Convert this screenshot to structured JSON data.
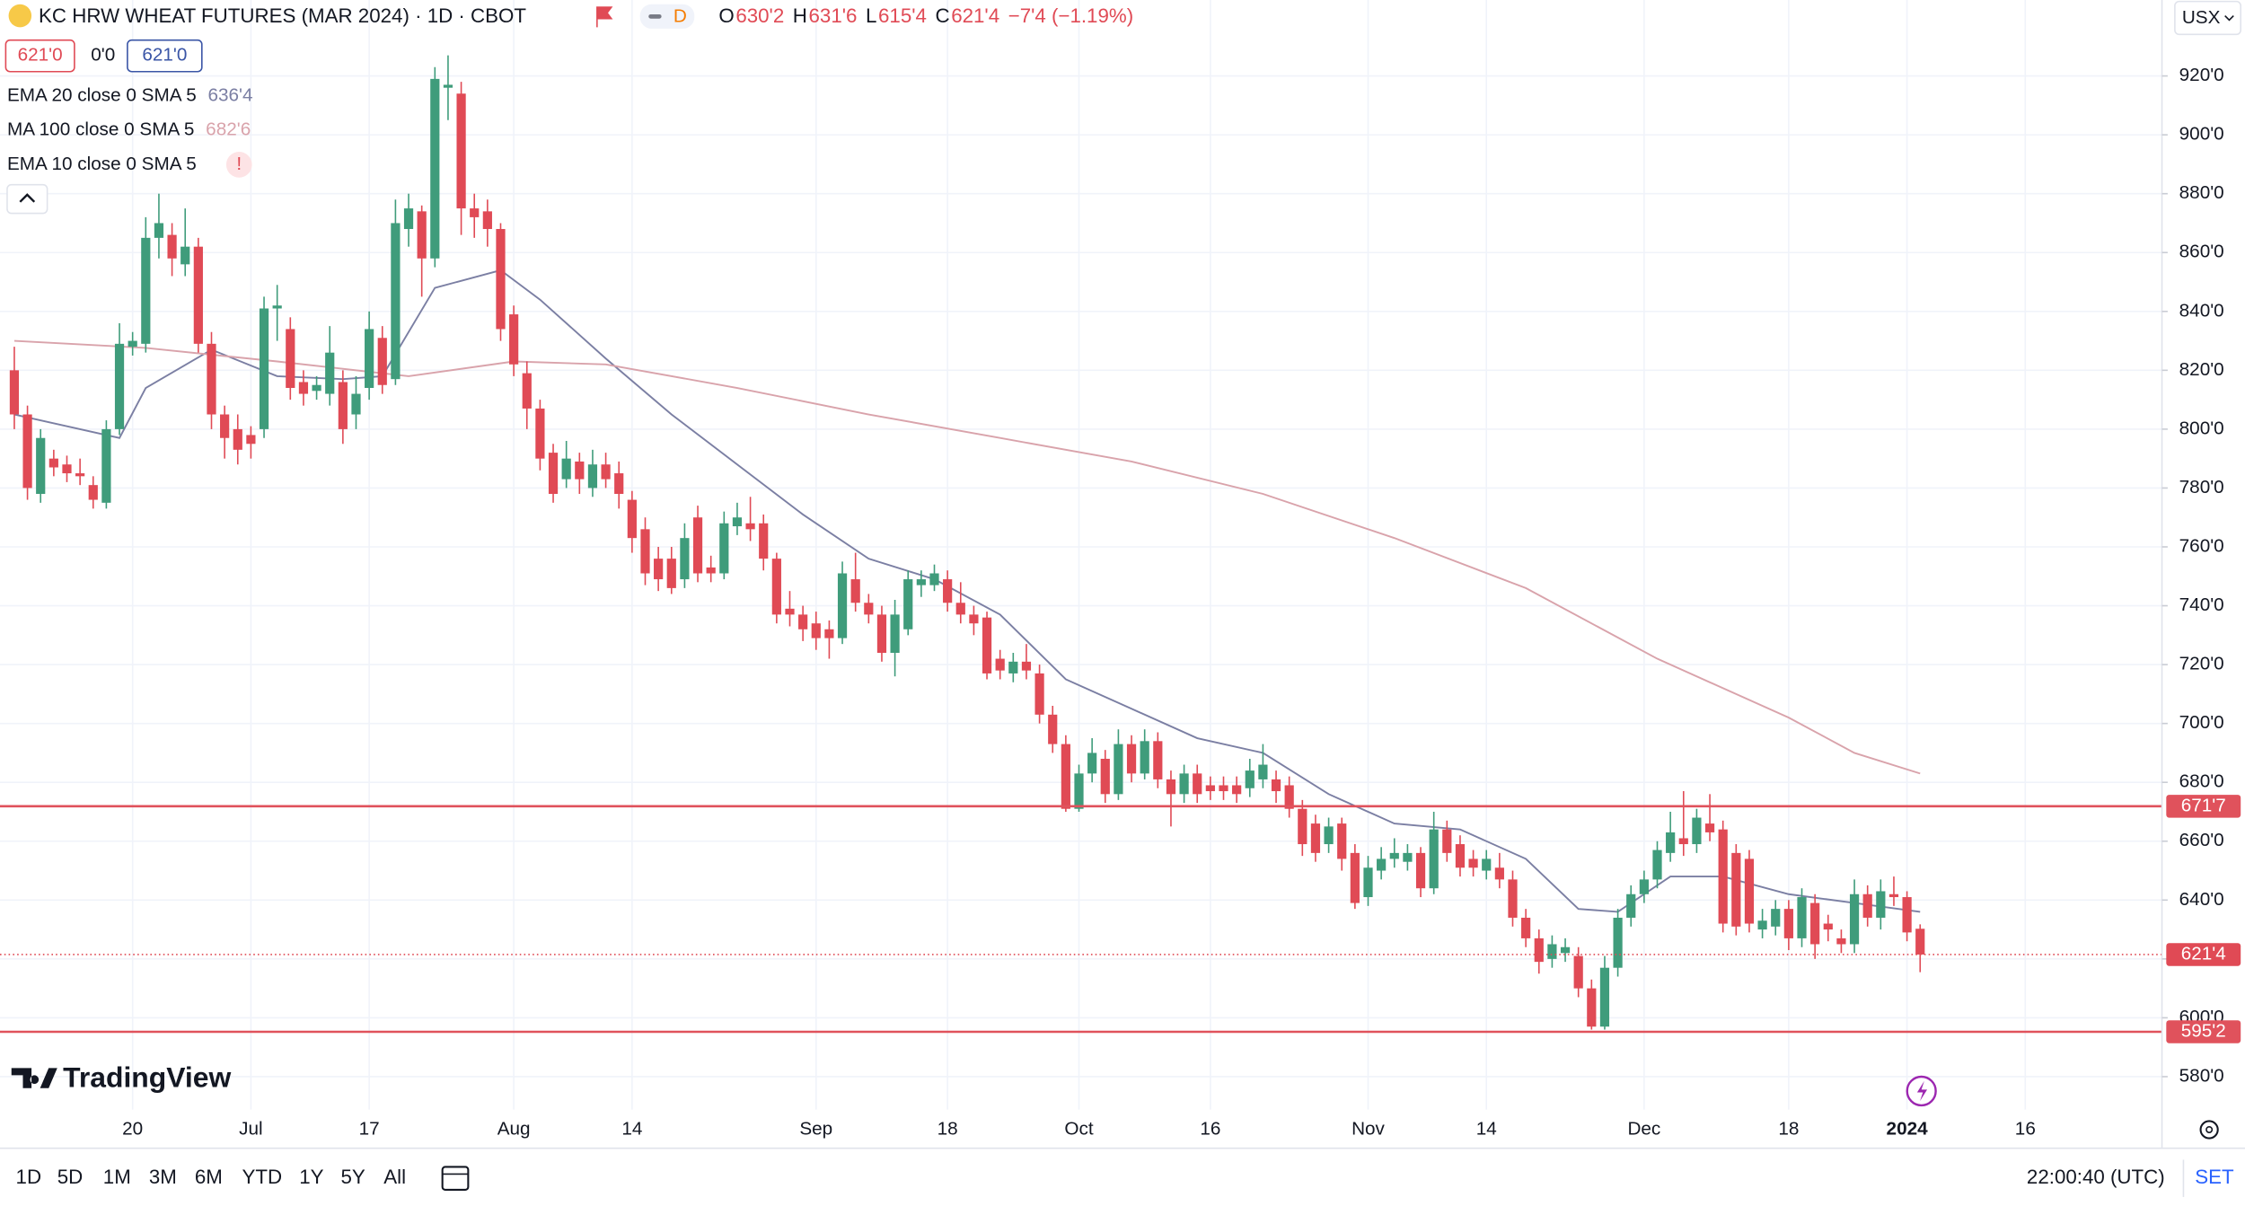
{
  "ui": {
    "symbol": "KC HRW WHEAT FUTURES (MAR 2024) · 1D · CBOT",
    "badge": "D",
    "legend": [
      {
        "key": "O",
        "value": "630'2"
      },
      {
        "key": "H",
        "value": "631'6"
      },
      {
        "key": "L",
        "value": "615'4"
      },
      {
        "key": "C",
        "value": "621'4"
      }
    ],
    "change": "−7'4 (−1.19%)",
    "sell": "621'0",
    "spread": "0'0",
    "buy": "621'0",
    "currency": "USX",
    "logo": "TradingView",
    "ranges": [
      "1D",
      "5D",
      "1M",
      "3M",
      "6M",
      "YTD",
      "1Y",
      "5Y",
      "All"
    ],
    "clock": "22:00:40 (UTC)",
    "settings": "SET"
  },
  "chart_data": {
    "type": "candlestick",
    "categories": [
      null,
      null,
      null,
      null,
      null,
      null,
      null,
      null,
      null,
      "20",
      null,
      null,
      null,
      null,
      null,
      null,
      null,
      null,
      "Jul",
      null,
      null,
      null,
      null,
      null,
      null,
      null,
      null,
      "17",
      null,
      null,
      null,
      null,
      null,
      null,
      null,
      null,
      null,
      null,
      "Aug",
      null,
      null,
      null,
      null,
      null,
      null,
      null,
      null,
      "14",
      null,
      null,
      null,
      null,
      null,
      null,
      null,
      null,
      null,
      null,
      null,
      null,
      null,
      "Sep",
      null,
      null,
      null,
      null,
      null,
      null,
      null,
      null,
      null,
      "18",
      null,
      null,
      null,
      null,
      null,
      null,
      null,
      null,
      null,
      "Oct",
      null,
      null,
      null,
      null,
      null,
      null,
      null,
      null,
      null,
      "16",
      null,
      null,
      null,
      null,
      null,
      null,
      null,
      null,
      null,
      null,
      null,
      "Nov",
      null,
      null,
      null,
      null,
      null,
      null,
      null,
      null,
      "14",
      null,
      null,
      null,
      null,
      null,
      null,
      null,
      null,
      null,
      null,
      null,
      "Dec",
      null,
      null,
      null,
      null,
      null,
      null,
      null,
      null,
      null,
      null,
      "18",
      null,
      null,
      null,
      null,
      null,
      null,
      null,
      null,
      "2024",
      null,
      null,
      null,
      null,
      null,
      null,
      null,
      null,
      "16"
    ],
    "open": [
      820,
      805,
      778,
      790,
      788,
      785,
      781,
      775,
      800,
      828,
      829,
      865,
      866,
      856,
      862,
      829,
      805,
      800,
      798,
      800,
      841,
      834,
      816,
      813,
      812,
      816,
      805,
      814,
      831,
      817,
      868,
      874,
      858,
      916,
      914,
      875,
      874,
      868,
      839,
      819,
      807,
      792,
      783,
      789,
      780,
      788,
      785,
      776,
      766,
      756,
      756,
      749,
      770,
      753,
      751,
      767,
      768,
      768,
      756,
      739,
      737,
      734,
      732,
      729,
      749,
      741,
      737,
      724,
      732,
      747,
      747,
      749,
      741,
      737,
      736,
      722,
      717,
      721,
      717,
      703,
      693,
      671,
      683,
      688,
      676,
      693,
      683,
      694,
      681,
      676,
      683,
      679,
      679,
      679,
      678,
      681,
      681,
      679,
      671,
      666,
      659,
      666,
      656,
      641,
      650,
      654,
      653,
      656,
      644,
      664,
      659,
      654,
      650,
      651,
      647,
      634,
      627,
      620,
      622,
      621,
      610,
      597,
      617,
      634,
      642,
      647,
      656,
      661,
      659,
      666,
      664,
      656,
      654,
      630,
      631,
      637,
      627,
      639,
      632,
      627,
      625,
      642,
      634,
      642,
      641,
      630.25,
      null,
      null,
      null,
      null,
      null,
      null,
      null,
      null
    ],
    "high": [
      828,
      808,
      800,
      793,
      791,
      790,
      784,
      803,
      836,
      833,
      872,
      880,
      870,
      875,
      865,
      833,
      808,
      805,
      801,
      845,
      849,
      838,
      820,
      818,
      835,
      820,
      818,
      840,
      835,
      878,
      880,
      876,
      923,
      927,
      918,
      880,
      878,
      870,
      842,
      823,
      810,
      795,
      796,
      792,
      793,
      792,
      789,
      779,
      770,
      760,
      760,
      768,
      774,
      757,
      772,
      775,
      777,
      771,
      758,
      745,
      740,
      738,
      735,
      755,
      758,
      744,
      740,
      742,
      752,
      752,
      754,
      752,
      748,
      740,
      738,
      725,
      724,
      727,
      720,
      706,
      696,
      686,
      695,
      691,
      698,
      696,
      698,
      697,
      684,
      686,
      686,
      682,
      682,
      682,
      688,
      693,
      684,
      682,
      674,
      669,
      668,
      668,
      659,
      655,
      658,
      661,
      659,
      658,
      670,
      667,
      662,
      657,
      657,
      656,
      650,
      637,
      630,
      628,
      627,
      624,
      613,
      621,
      637,
      645,
      650,
      660,
      670,
      677,
      671,
      676,
      667,
      659,
      657,
      637,
      640,
      640,
      644,
      642,
      635,
      630,
      647,
      645,
      647,
      648,
      643,
      631.75,
      null,
      null,
      null,
      null,
      null,
      null,
      null,
      null
    ],
    "low": [
      800,
      776,
      775,
      784,
      782,
      781,
      773,
      773,
      798,
      825,
      826,
      858,
      852,
      852,
      826,
      800,
      790,
      788,
      790,
      797,
      830,
      810,
      808,
      810,
      808,
      795,
      800,
      810,
      812,
      815,
      862,
      845,
      855,
      905,
      866,
      865,
      862,
      830,
      818,
      800,
      786,
      775,
      780,
      778,
      777,
      780,
      773,
      758,
      747,
      745,
      744,
      746,
      748,
      748,
      749,
      764,
      762,
      752,
      734,
      733,
      728,
      725,
      722,
      727,
      738,
      734,
      721,
      716,
      730,
      743,
      745,
      738,
      734,
      730,
      715,
      715,
      714,
      715,
      700,
      690,
      670,
      670,
      680,
      673,
      674,
      680,
      681,
      678,
      665,
      673,
      673,
      674,
      674,
      673,
      675,
      678,
      673,
      668,
      655,
      653,
      656,
      650,
      637,
      638,
      647,
      651,
      650,
      641,
      642,
      653,
      648,
      648,
      647,
      644,
      631,
      624,
      615,
      617,
      619,
      607,
      596,
      596,
      614,
      631,
      639,
      644,
      653,
      655,
      656,
      660,
      629,
      628,
      629,
      627,
      628,
      623,
      624,
      620,
      626,
      622,
      622,
      631,
      630,
      638,
      626,
      615.5,
      null,
      null,
      null,
      null,
      null,
      null,
      null,
      null
    ],
    "close": [
      805,
      780,
      797,
      787,
      785,
      784,
      776,
      800,
      829,
      830,
      865,
      870,
      858,
      862,
      829,
      805,
      797,
      793,
      795,
      841,
      842,
      814,
      812,
      815,
      826,
      800,
      812,
      834,
      815,
      870,
      875,
      858,
      919,
      917,
      875,
      872,
      868,
      834,
      822,
      807,
      790,
      778,
      790,
      783,
      788,
      783,
      778,
      763,
      751,
      749,
      746,
      763,
      751,
      751,
      768,
      770,
      766,
      756,
      737,
      737,
      732,
      729,
      729,
      751,
      741,
      737,
      724,
      737,
      749,
      749,
      751,
      741,
      737,
      734,
      717,
      718,
      721,
      718,
      703,
      693,
      671,
      683,
      690,
      676,
      693,
      683,
      694,
      681,
      676,
      683,
      676,
      677,
      677,
      676,
      684,
      686,
      677,
      671,
      659,
      656,
      665,
      654,
      639,
      651,
      654,
      656,
      656,
      644,
      664,
      656,
      651,
      651,
      654,
      647,
      634,
      627,
      619,
      625,
      624,
      610,
      597,
      617,
      634,
      642,
      647,
      657,
      663,
      659,
      668,
      663,
      632,
      631,
      632,
      633,
      637,
      627,
      641,
      625,
      630,
      625,
      642,
      634,
      643,
      641,
      629,
      621.5,
      null,
      null,
      null,
      null,
      null,
      null,
      null,
      null
    ],
    "up_color": "#3f9c7b",
    "down_color": "#e04a55",
    "ylim": [
      568.8,
      945.8
    ],
    "yticks": [
      {
        "value": 580,
        "label": "580'0"
      },
      {
        "value": 600,
        "label": "600'0"
      },
      {
        "value": 620,
        "label": "620'0"
      },
      {
        "value": 640,
        "label": "640'0"
      },
      {
        "value": 660,
        "label": "660'0"
      },
      {
        "value": 680,
        "label": "680'0"
      },
      {
        "value": 700,
        "label": "700'0"
      },
      {
        "value": 720,
        "label": "720'0"
      },
      {
        "value": 740,
        "label": "740'0"
      },
      {
        "value": 760,
        "label": "760'0"
      },
      {
        "value": 780,
        "label": "780'0"
      },
      {
        "value": 800,
        "label": "800'0"
      },
      {
        "value": 820,
        "label": "820'0"
      },
      {
        "value": 840,
        "label": "840'0"
      },
      {
        "value": 860,
        "label": "860'0"
      },
      {
        "value": 880,
        "label": "880'0"
      },
      {
        "value": 900,
        "label": "900'0"
      },
      {
        "value": 920,
        "label": "920'0"
      }
    ],
    "grid": true,
    "indicators": [
      {
        "name": "EMA 20 close 0 SMA 5",
        "value_label": "636'4",
        "color": "#7b7fa3",
        "index": [
          0,
          5,
          8,
          10,
          15,
          20,
          25,
          28,
          32,
          37,
          40,
          45,
          50,
          55,
          60,
          65,
          70,
          75,
          80,
          85,
          90,
          95,
          100,
          105,
          110,
          115,
          119,
          122,
          126,
          130,
          135,
          140,
          145
        ],
        "values": [
          805,
          800,
          797,
          814,
          827,
          818,
          817,
          818,
          848,
          854,
          844,
          824,
          805,
          788,
          771,
          756,
          749,
          737,
          715,
          705,
          695,
          690,
          676,
          666,
          664,
          654,
          637,
          636,
          648,
          648,
          642,
          639,
          636
        ]
      },
      {
        "name": "MA 100 close 0 SMA 5",
        "value_label": "682'6",
        "color": "#d9a3ab",
        "index": [
          0,
          10,
          20,
          30,
          38,
          45,
          55,
          65,
          75,
          85,
          95,
          105,
          115,
          125,
          135,
          140,
          145
        ],
        "values": [
          830,
          827.6,
          823,
          818,
          823,
          822,
          814,
          805,
          797,
          789,
          778,
          763,
          746,
          722,
          702,
          690,
          683
        ]
      },
      {
        "name": "EMA 10 close 0 SMA 5",
        "value_label": "!",
        "color": "#e04a55"
      }
    ],
    "hlines": [
      {
        "value": 671.875,
        "label": "671'7"
      },
      {
        "value": 595.25,
        "label": "595'2"
      }
    ],
    "hline_color": "#e0525c",
    "last_price": {
      "value": 621.5,
      "label": "621'4"
    }
  }
}
